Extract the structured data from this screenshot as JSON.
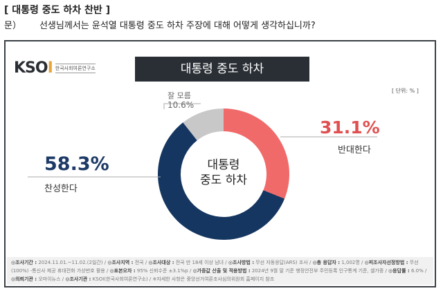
{
  "header": {
    "title": "[ 대통령 중도 하차 찬반 ]",
    "q_prefix": "문）",
    "question": "선생님께서는 윤석열 대통령 중도 하차 주장에 대해 어떻게 생각하십니까?"
  },
  "logo": {
    "brand": "KSOI",
    "org": "한국사회여론연구소"
  },
  "banner": "대통령 중도 하차",
  "unit": "[ 단위: % ]",
  "chart_data": {
    "type": "pie",
    "donut": true,
    "title": "대통령 중도 하차",
    "center_label": [
      "대통령",
      "중도 하차"
    ],
    "unit": "%",
    "slices": [
      {
        "name": "반대한다",
        "value": 31.1,
        "label": "31.1%",
        "color": "#f06a6a"
      },
      {
        "name": "찬성한다",
        "value": 58.3,
        "label": "58.3%",
        "color": "#143660"
      },
      {
        "name": "잘 모름",
        "value": 10.6,
        "label": "10.6%",
        "color": "#c8c8c8"
      }
    ]
  },
  "footer": [
    {
      "k": "◎조사기간 :",
      "v": " 2024.11.01.~11.02.(2일간) / "
    },
    {
      "k": "◎조사지역 :",
      "v": " 전국 / "
    },
    {
      "k": "◎조사대상 :",
      "v": " 전국 만 18세 이상 남녀 / "
    },
    {
      "k": "◎조사방법 :",
      "v": " 무선 자동응답(ARS) 조사 / "
    },
    {
      "k": "◎총 응답자 :",
      "v": " 1,002명 / "
    },
    {
      "k": "◎피조사자선정방법 :",
      "v": " 무선(100%) -통신사 제공 휴대전화 가상번호 활용 / "
    },
    {
      "k": "◎표본오차 :",
      "v": " 95% 신뢰수준 ±3.1%p / "
    },
    {
      "k": "◎가중값 산출 및 적용방법 :",
      "v": " 2024년 9월 말 기준 행정안전부 주민등록 인구통계 기준, 셀가중 / "
    },
    {
      "k": "◎응답률 :",
      "v": " 6.0% / "
    },
    {
      "k": "◎의뢰기관 :",
      "v": " 오마이뉴스 / "
    },
    {
      "k": "◎조사기관 :",
      "v": " KSOI(한국사회여론연구소) / ※자세한 사항은 중앙선거여론조사심의위원회 홈페이지 참조"
    }
  ]
}
